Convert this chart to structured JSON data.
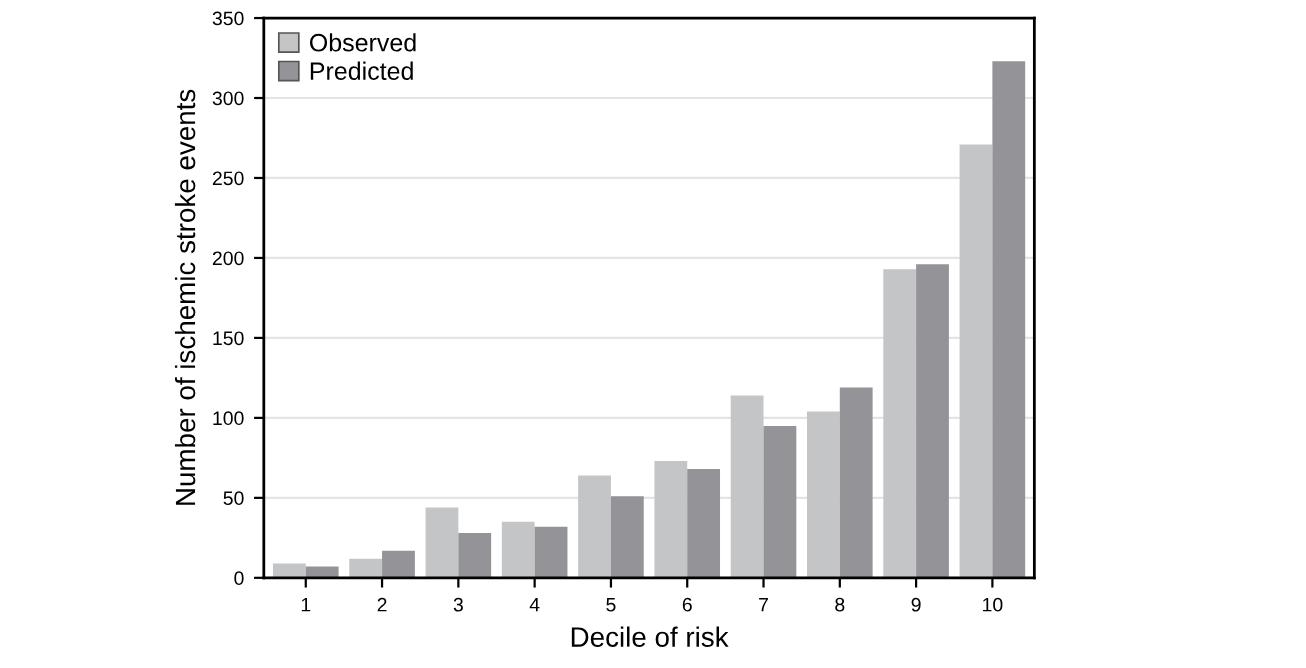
{
  "chart_data": {
    "type": "bar",
    "xlabel": "Decile of risk",
    "ylabel": "Number of ischemic stroke events",
    "categories": [
      "1",
      "2",
      "3",
      "4",
      "5",
      "6",
      "7",
      "8",
      "9",
      "10"
    ],
    "series": [
      {
        "name": "Observed",
        "color": "#c4c5c7",
        "values": [
          9,
          12,
          44,
          35,
          64,
          73,
          114,
          104,
          193,
          271
        ]
      },
      {
        "name": "Predicted",
        "color": "#939398",
        "values": [
          7,
          17,
          28,
          32,
          51,
          68,
          95,
          119,
          196,
          323
        ]
      }
    ],
    "ylim": [
      0,
      350
    ],
    "yticks": [
      0,
      50,
      100,
      150,
      200,
      250,
      300,
      350
    ],
    "grid": "y",
    "legend": "top left"
  }
}
